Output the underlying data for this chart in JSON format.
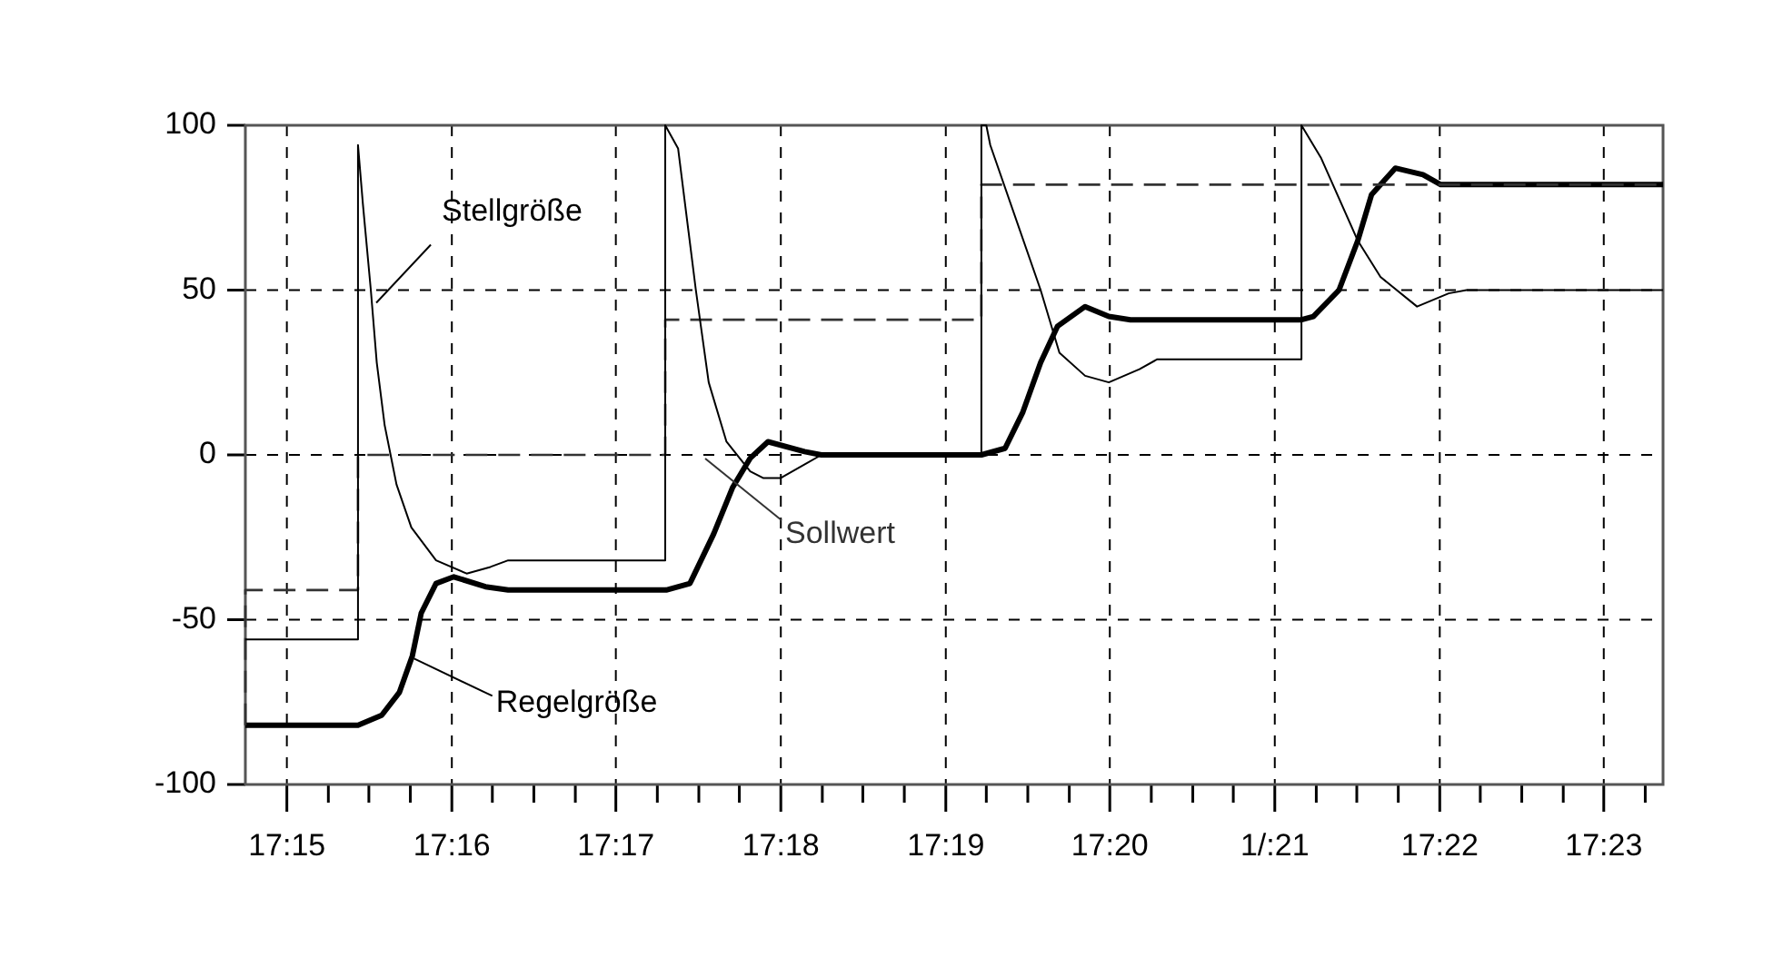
{
  "chart_data": {
    "type": "line",
    "xlim": [
      17.2458,
      17.3893
    ],
    "ylim": [
      -100,
      100
    ],
    "xticks": [
      {
        "value": 17.25,
        "label": "17:15"
      },
      {
        "value": 17.2542,
        "label": null
      },
      {
        "value": 17.2583,
        "label": null
      },
      {
        "value": 17.2625,
        "label": null
      },
      {
        "value": 17.2667,
        "label": "17:16"
      },
      {
        "value": 17.2708,
        "label": null
      },
      {
        "value": 17.275,
        "label": null
      },
      {
        "value": 17.2792,
        "label": null
      },
      {
        "value": 17.2833,
        "label": "17:17"
      },
      {
        "value": 17.2875,
        "label": null
      },
      {
        "value": 17.2917,
        "label": null
      },
      {
        "value": 17.2958,
        "label": null
      },
      {
        "value": 17.3,
        "label": "17:18"
      },
      {
        "value": 17.3042,
        "label": null
      },
      {
        "value": 17.3083,
        "label": null
      },
      {
        "value": 17.3125,
        "label": null
      },
      {
        "value": 17.3167,
        "label": "17:19"
      },
      {
        "value": 17.3208,
        "label": null
      },
      {
        "value": 17.325,
        "label": null
      },
      {
        "value": 17.3292,
        "label": null
      },
      {
        "value": 17.3333,
        "label": "17:20"
      },
      {
        "value": 17.3375,
        "label": null
      },
      {
        "value": 17.3417,
        "label": null
      },
      {
        "value": 17.3458,
        "label": null
      },
      {
        "value": 17.35,
        "label": "1/:21"
      },
      {
        "value": 17.3542,
        "label": null
      },
      {
        "value": 17.3583,
        "label": null
      },
      {
        "value": 17.3625,
        "label": null
      },
      {
        "value": 17.3667,
        "label": "17:22"
      },
      {
        "value": 17.3708,
        "label": null
      },
      {
        "value": 17.375,
        "label": null
      },
      {
        "value": 17.3792,
        "label": null
      },
      {
        "value": 17.3833,
        "label": "17:23"
      },
      {
        "value": 17.3875,
        "label": null
      }
    ],
    "yticks": [
      -100,
      -50,
      0,
      50,
      100
    ],
    "grid": true,
    "legend": false,
    "marker": "none",
    "series": [
      {
        "name": "Stellgröße",
        "color": "#000000",
        "line_style": "solid",
        "x": [
          17.2458,
          17.2572,
          17.2572,
          17.2577,
          17.2585,
          17.2591,
          17.2599,
          17.2611,
          17.2626,
          17.2651,
          17.2682,
          17.2706,
          17.2724,
          17.2883,
          17.2883,
          17.2896,
          17.2914,
          17.2927,
          17.2945,
          17.2969,
          17.2982,
          17.3,
          17.3041,
          17.3203,
          17.3203,
          17.3208,
          17.3212,
          17.3263,
          17.3282,
          17.3308,
          17.3332,
          17.3363,
          17.3381,
          17.3527,
          17.3527,
          17.3547,
          17.3584,
          17.3607,
          17.3644,
          17.3676,
          17.3694,
          17.3893
        ],
        "values": [
          -56,
          -56,
          94,
          76,
          50,
          28,
          9,
          -9,
          -22,
          -32,
          -36,
          -34,
          -32,
          -32,
          100,
          93,
          50,
          22,
          4,
          -5,
          -7,
          -7,
          0,
          0,
          100,
          100,
          94,
          50,
          31,
          24,
          22,
          26,
          29,
          29,
          100,
          90,
          65,
          54,
          45,
          49,
          50,
          50
        ]
      },
      {
        "name": "Sollwert",
        "type": "step",
        "color": "#333333",
        "line_style": "dashed",
        "x": [
          17.2458,
          17.2572,
          17.2883,
          17.3203,
          17.3527,
          17.3893
        ],
        "values": [
          -82,
          -41,
          0,
          41,
          82,
          82
        ]
      },
      {
        "name": "Regelgröße",
        "color": "#000000",
        "line_style": "solid",
        "x": [
          17.2458,
          17.2572,
          17.2596,
          17.2614,
          17.2627,
          17.2636,
          17.2651,
          17.2669,
          17.2701,
          17.2724,
          17.2884,
          17.2908,
          17.2932,
          17.2951,
          17.2969,
          17.2987,
          17.3024,
          17.3041,
          17.3203,
          17.3227,
          17.3245,
          17.3263,
          17.328,
          17.3308,
          17.3332,
          17.3354,
          17.3527,
          17.3539,
          17.3565,
          17.3584,
          17.3598,
          17.3622,
          17.365,
          17.3668,
          17.3893
        ],
        "values": [
          -82,
          -82,
          -79,
          -72,
          -61,
          -48,
          -39,
          -37,
          -40,
          -41,
          -41,
          -39,
          -24,
          -10,
          -1,
          4,
          1,
          0,
          0,
          2,
          13,
          28,
          39,
          45,
          42,
          41,
          41,
          42,
          50,
          65,
          79,
          87,
          85,
          82,
          82
        ]
      }
    ]
  }
}
